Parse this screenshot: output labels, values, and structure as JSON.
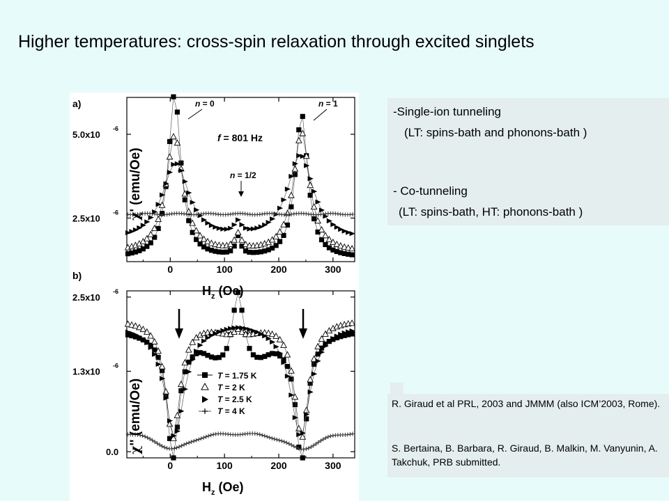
{
  "title": "Higher temperatures: cross-spin relaxation through excited singlets",
  "notes": {
    "line1": "-Single-ion tunneling",
    "line2": "(LT: spins-bath and phonons-bath )",
    "line3": "- Co-tunneling",
    "line4": "(LT: spins-bath, HT: phonons-bath )"
  },
  "references": {
    "ref1": "R. Giraud et al PRL, 2003 and JMMM (also ICM’2003, Rome).",
    "ref2": "S. Bertaina, B. Barbara, R. Giraud, B. Malkin, M. Vanyunin, A. Takchuk, PRB submitted."
  },
  "chart_data": [
    {
      "type": "scatter",
      "panel_label": "a)",
      "xlabel_main": "H",
      "xlabel_sub": "z",
      "xlabel_rest": "(Oe)",
      "ylabel_chi": "χ",
      "ylabel_rest": "' (emu/Oe)",
      "xlim": [
        -80,
        340
      ],
      "x_ticks": [
        0,
        100,
        200,
        300
      ],
      "x_tick_labels": [
        "0",
        "100",
        "200",
        "300"
      ],
      "ylim": [
        1.2e-06,
        6.1e-06
      ],
      "y_ticks": [
        2.5e-06,
        5e-06
      ],
      "y_tick_mantissas": [
        "2.5x10",
        "5.0x10"
      ],
      "y_tick_exponent": "-6",
      "annotations": [
        {
          "label_n": "n",
          "label_rest": " = 0"
        },
        {
          "label_n": "n",
          "label_rest": " = 1"
        },
        {
          "label_n": "n",
          "label_rest": " = 1/2"
        },
        {
          "label_n": "f",
          "label_rest": " = 801 Hz"
        }
      ],
      "series": [
        {
          "marker": "filled-square",
          "peaks": [
            {
              "x": 8,
              "height": 4.9e-06,
              "width": 28
            },
            {
              "x": 242,
              "height": 4.3e-06,
              "width": 28
            },
            {
              "x": 125,
              "height": 5.5e-07,
              "width": 12
            }
          ],
          "baseline": 1.3e-06
        },
        {
          "marker": "open-triangle",
          "peaks": [
            {
              "x": 8,
              "height": 3.5e-06,
              "width": 38
            },
            {
              "x": 242,
              "height": 3.6e-06,
              "width": 36
            },
            {
              "x": 125,
              "height": 4.5e-07,
              "width": 14
            }
          ],
          "baseline": 1.45e-06
        },
        {
          "marker": "filled-triangle-right",
          "peaks": [
            {
              "x": 10,
              "height": 2.3e-06,
              "width": 60
            },
            {
              "x": 240,
              "height": 2.55e-06,
              "width": 58
            },
            {
              "x": 125,
              "height": 3.5e-07,
              "width": 16
            }
          ],
          "baseline": 1.8e-06
        },
        {
          "marker": "plus",
          "peaks": [],
          "baseline": 2.62e-06
        }
      ]
    },
    {
      "type": "scatter",
      "panel_label": "b)",
      "xlabel_main": "H",
      "xlabel_sub": "z",
      "xlabel_rest": "(Oe)",
      "ylabel_chi": "χ",
      "ylabel_rest": "'' (emu/Oe)",
      "xlim": [
        -80,
        340
      ],
      "x_ticks": [
        0,
        100,
        200,
        300
      ],
      "x_tick_labels": [
        "0",
        "100",
        "200",
        "300"
      ],
      "ylim": [
        -1e-07,
        2.6e-06
      ],
      "y_ticks": [
        0.0,
        1.3e-06,
        2.5e-06
      ],
      "y_tick_mantissas": [
        "0.0",
        "1.3x10",
        "2.5x10"
      ],
      "y_tick_exponent": "-6",
      "legend_position": "center",
      "legend": [
        {
          "marker": "filled-square",
          "label_t": "T",
          "label_rest": " = 1.75 K"
        },
        {
          "marker": "open-triangle",
          "label_t": "T",
          "label_rest": " = 2 K"
        },
        {
          "marker": "filled-triangle-right",
          "label_t": "T",
          "label_rest": " = 2.5 K"
        },
        {
          "marker": "plus",
          "label_t": "T",
          "label_rest": " = 4 K"
        }
      ]
    }
  ]
}
